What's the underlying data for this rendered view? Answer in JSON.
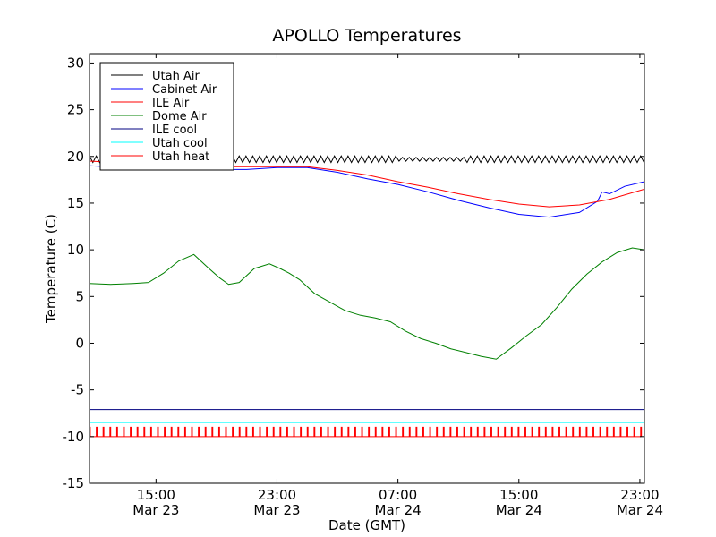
{
  "chart_data": {
    "type": "line",
    "title": "APOLLO Temperatures",
    "xlabel": "Date (GMT)",
    "ylabel": "Temperature (C)",
    "ylim": [
      -15,
      31
    ],
    "xlim_hours": [
      10.6,
      47.3
    ],
    "grid": false,
    "legend_position": "top-left",
    "y_ticks": [
      30,
      25,
      20,
      15,
      10,
      5,
      0,
      -5,
      -10,
      -15
    ],
    "y_tick_labels": [
      "30",
      "25",
      "20",
      "15",
      "10",
      "5",
      "0",
      "-5",
      "-10",
      "-15"
    ],
    "x_ticks_hours": [
      15,
      23,
      31,
      39,
      47
    ],
    "x_tick_time_labels": [
      "15:00",
      "23:00",
      "07:00",
      "15:00",
      "23:00"
    ],
    "x_tick_date_labels": [
      "Mar 23",
      "Mar 23",
      "Mar 24",
      "Mar 24",
      "Mar 24"
    ],
    "series": [
      {
        "name": "Utah Air",
        "color": "#000000",
        "style": "oscillating",
        "x": [
          10.6,
          47.3
        ],
        "values": [
          19.7,
          19.7
        ],
        "oscillation_amplitude": 0.35,
        "oscillation_period_hours": 0.45
      },
      {
        "name": "Cabinet Air",
        "color": "#0000ff",
        "x": [
          10.6,
          13,
          16,
          19,
          21,
          23,
          25,
          27,
          29,
          31,
          33,
          35,
          37,
          39,
          41,
          43,
          44.2,
          44.5,
          45,
          46,
          47.3
        ],
        "values": [
          19.0,
          18.8,
          18.6,
          18.6,
          18.6,
          18.8,
          18.8,
          18.3,
          17.6,
          17.0,
          16.2,
          15.3,
          14.5,
          13.8,
          13.5,
          14.0,
          15.2,
          16.2,
          16.0,
          16.8,
          17.3
        ]
      },
      {
        "name": "ILE Air",
        "color": "#ff0000",
        "x": [
          10.6,
          13,
          16,
          19,
          21,
          23,
          25,
          27,
          29,
          31,
          33,
          35,
          37,
          39,
          41,
          43,
          45,
          47.3
        ],
        "values": [
          19.5,
          19.3,
          19.0,
          18.9,
          18.9,
          18.9,
          18.9,
          18.5,
          18.0,
          17.3,
          16.7,
          16.0,
          15.4,
          14.9,
          14.6,
          14.8,
          15.4,
          16.5
        ]
      },
      {
        "name": "Dome Air",
        "color": "#008000",
        "x": [
          10.6,
          12,
          13.5,
          14.5,
          15.5,
          16.5,
          17.5,
          18.5,
          19.2,
          19.8,
          20.5,
          21.5,
          22.5,
          23.2,
          23.8,
          24.5,
          25.5,
          26.5,
          27.5,
          28.5,
          29.5,
          30.5,
          31.5,
          32.5,
          33.5,
          34.5,
          35.5,
          36.5,
          37.5,
          38.5,
          39.5,
          40.5,
          41.5,
          42.5,
          43.5,
          44.5,
          45.5,
          46.5,
          47.3
        ],
        "values": [
          6.4,
          6.3,
          6.4,
          6.5,
          7.5,
          8.8,
          9.5,
          8.0,
          7.0,
          6.3,
          6.5,
          8.0,
          8.5,
          8.0,
          7.5,
          6.8,
          5.3,
          4.4,
          3.5,
          3.0,
          2.7,
          2.3,
          1.3,
          0.5,
          0.0,
          -0.6,
          -1.0,
          -1.4,
          -1.7,
          -0.5,
          0.8,
          2.0,
          3.8,
          5.8,
          7.4,
          8.7,
          9.7,
          10.2,
          10.0
        ]
      },
      {
        "name": "ILE cool",
        "color": "#000080",
        "x": [
          10.6,
          47.3
        ],
        "values": [
          -7.1,
          -7.1
        ]
      },
      {
        "name": "Utah cool",
        "color": "#00ffff",
        "x": [
          10.6,
          47.3
        ],
        "values": [
          -8.5,
          -8.5
        ]
      },
      {
        "name": "Utah heat",
        "color": "#ff0000",
        "style": "pulse",
        "x": [
          10.6,
          47.3
        ],
        "values": [
          -10.0,
          -10.0
        ],
        "pulse_high": -9.0,
        "pulse_period_hours": 0.45
      }
    ]
  }
}
